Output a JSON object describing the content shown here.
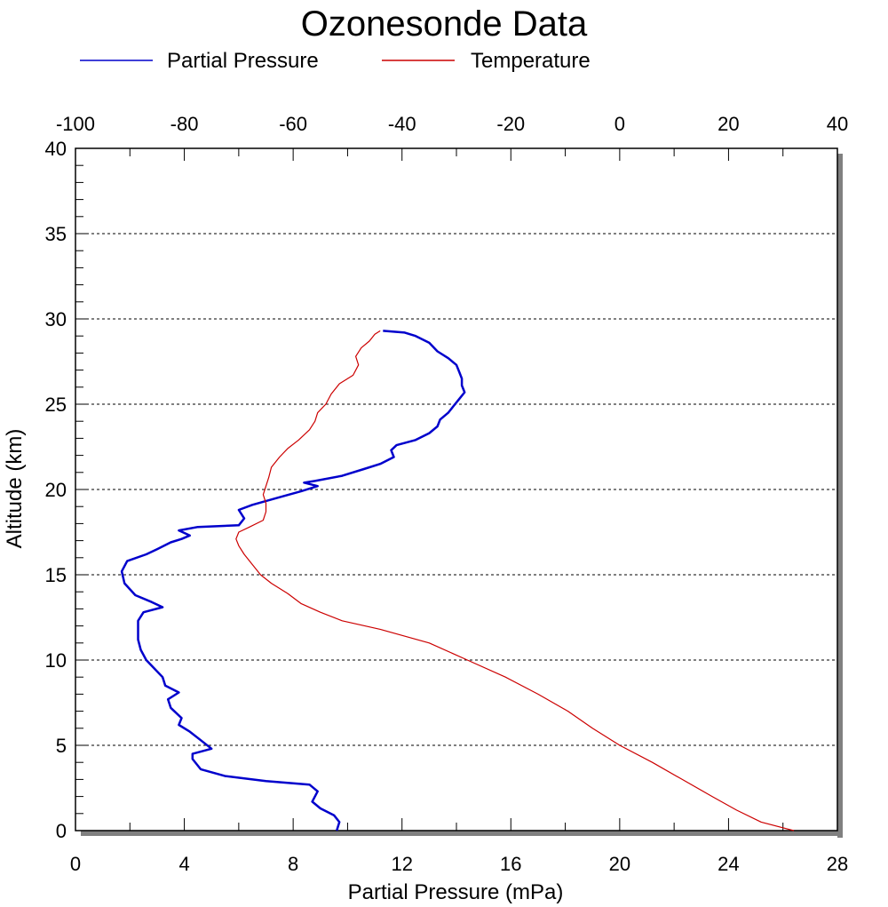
{
  "chart_data": {
    "type": "line",
    "title": "Ozonesonde Data",
    "legend_position": "top",
    "grid": {
      "horizontal": true,
      "style": "dotted"
    },
    "axes": {
      "bottom": {
        "label": "Partial Pressure (mPa)",
        "min": 0,
        "max": 28,
        "ticks": [
          0,
          4,
          8,
          12,
          16,
          20,
          24,
          28
        ]
      },
      "top": {
        "label": "",
        "min": -100,
        "max": 40,
        "ticks": [
          -100,
          -80,
          -60,
          -40,
          -20,
          0,
          20,
          40
        ]
      },
      "left": {
        "label": "Altitude (km)",
        "min": 0,
        "max": 40,
        "ticks": [
          0,
          5,
          10,
          15,
          20,
          25,
          30,
          35,
          40
        ]
      }
    },
    "series": [
      {
        "name": "Partial Pressure",
        "color": "#0000cc",
        "x_axis": "bottom",
        "points": [
          [
            9.6,
            0.0
          ],
          [
            9.7,
            0.5
          ],
          [
            9.5,
            0.9
          ],
          [
            9.0,
            1.3
          ],
          [
            8.7,
            1.7
          ],
          [
            8.9,
            2.3
          ],
          [
            8.6,
            2.7
          ],
          [
            7.0,
            2.9
          ],
          [
            5.5,
            3.2
          ],
          [
            4.6,
            3.6
          ],
          [
            4.3,
            4.2
          ],
          [
            4.3,
            4.5
          ],
          [
            5.0,
            4.8
          ],
          [
            4.6,
            5.3
          ],
          [
            4.2,
            5.8
          ],
          [
            3.8,
            6.2
          ],
          [
            3.9,
            6.6
          ],
          [
            3.5,
            7.2
          ],
          [
            3.4,
            7.7
          ],
          [
            3.8,
            8.1
          ],
          [
            3.3,
            8.5
          ],
          [
            3.2,
            9.0
          ],
          [
            2.9,
            9.5
          ],
          [
            2.6,
            10.0
          ],
          [
            2.4,
            10.6
          ],
          [
            2.3,
            11.2
          ],
          [
            2.3,
            11.8
          ],
          [
            2.3,
            12.3
          ],
          [
            2.5,
            12.8
          ],
          [
            3.2,
            13.1
          ],
          [
            2.8,
            13.4
          ],
          [
            2.2,
            13.8
          ],
          [
            1.8,
            14.5
          ],
          [
            1.7,
            15.2
          ],
          [
            1.9,
            15.8
          ],
          [
            2.6,
            16.2
          ],
          [
            3.0,
            16.5
          ],
          [
            3.5,
            16.9
          ],
          [
            3.9,
            17.1
          ],
          [
            4.2,
            17.3
          ],
          [
            3.8,
            17.6
          ],
          [
            4.5,
            17.8
          ],
          [
            6.0,
            17.9
          ],
          [
            6.2,
            18.3
          ],
          [
            6.0,
            18.8
          ],
          [
            6.5,
            19.1
          ],
          [
            7.4,
            19.5
          ],
          [
            8.3,
            19.9
          ],
          [
            8.9,
            20.2
          ],
          [
            8.4,
            20.4
          ],
          [
            8.8,
            20.5
          ],
          [
            9.8,
            20.8
          ],
          [
            10.6,
            21.2
          ],
          [
            11.2,
            21.5
          ],
          [
            11.7,
            21.9
          ],
          [
            11.6,
            22.3
          ],
          [
            11.8,
            22.6
          ],
          [
            12.5,
            22.9
          ],
          [
            13.0,
            23.3
          ],
          [
            13.3,
            23.7
          ],
          [
            13.4,
            24.1
          ],
          [
            13.7,
            24.5
          ],
          [
            13.9,
            24.9
          ],
          [
            14.1,
            25.3
          ],
          [
            14.3,
            25.7
          ],
          [
            14.2,
            26.1
          ],
          [
            14.2,
            26.5
          ],
          [
            14.1,
            26.9
          ],
          [
            14.0,
            27.3
          ],
          [
            13.7,
            27.7
          ],
          [
            13.3,
            28.1
          ],
          [
            13.0,
            28.6
          ],
          [
            12.5,
            29.0
          ],
          [
            12.1,
            29.2
          ],
          [
            11.3,
            29.3
          ]
        ]
      },
      {
        "name": "Temperature",
        "color": "#cc0000",
        "x_axis": "top",
        "points": [
          [
            32.0,
            0.0
          ],
          [
            26.0,
            0.5
          ],
          [
            21.5,
            1.2
          ],
          [
            17.0,
            2.0
          ],
          [
            11.5,
            3.0
          ],
          [
            6.0,
            4.0
          ],
          [
            0.0,
            5.0
          ],
          [
            -5.0,
            6.0
          ],
          [
            -9.5,
            7.0
          ],
          [
            -15.0,
            8.0
          ],
          [
            -21.0,
            9.0
          ],
          [
            -28.0,
            10.0
          ],
          [
            -35.0,
            11.0
          ],
          [
            -44.0,
            11.8
          ],
          [
            -51.0,
            12.3
          ],
          [
            -55.0,
            12.8
          ],
          [
            -58.5,
            13.3
          ],
          [
            -61.0,
            13.9
          ],
          [
            -64.0,
            14.5
          ],
          [
            -66.0,
            15.0
          ],
          [
            -67.0,
            15.4
          ],
          [
            -68.0,
            15.8
          ],
          [
            -69.0,
            16.2
          ],
          [
            -70.0,
            16.7
          ],
          [
            -70.5,
            17.1
          ],
          [
            -70.0,
            17.5
          ],
          [
            -68.0,
            17.8
          ],
          [
            -65.5,
            18.2
          ],
          [
            -65.0,
            18.7
          ],
          [
            -65.0,
            19.2
          ],
          [
            -65.5,
            19.7
          ],
          [
            -65.0,
            20.2
          ],
          [
            -64.5,
            20.7
          ],
          [
            -64.0,
            21.3
          ],
          [
            -62.5,
            21.9
          ],
          [
            -61.0,
            22.4
          ],
          [
            -59.0,
            22.9
          ],
          [
            -57.0,
            23.5
          ],
          [
            -56.0,
            24.0
          ],
          [
            -55.5,
            24.5
          ],
          [
            -54.0,
            25.0
          ],
          [
            -53.0,
            25.6
          ],
          [
            -51.5,
            26.2
          ],
          [
            -49.0,
            26.7
          ],
          [
            -48.0,
            27.3
          ],
          [
            -48.5,
            27.8
          ],
          [
            -47.5,
            28.3
          ],
          [
            -46.0,
            28.7
          ],
          [
            -45.0,
            29.1
          ],
          [
            -44.0,
            29.3
          ]
        ]
      }
    ]
  }
}
